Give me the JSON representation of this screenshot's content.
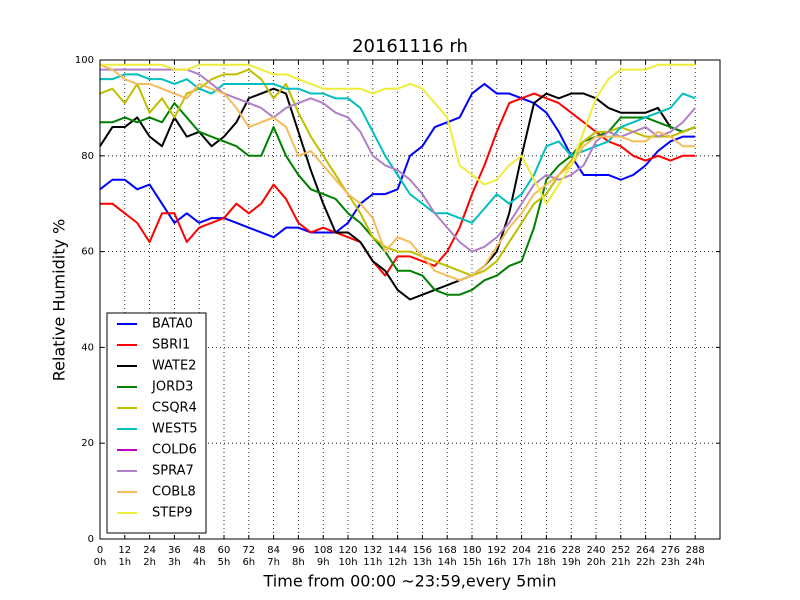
{
  "chart_data": {
    "type": "line",
    "title": "20161116 rh",
    "xlabel": "Time from 00:00 ~23:59,every 5min",
    "ylabel": "Relative Humidity %",
    "x": [
      0,
      6,
      12,
      18,
      24,
      30,
      36,
      42,
      48,
      54,
      60,
      66,
      72,
      78,
      84,
      90,
      96,
      102,
      108,
      114,
      120,
      126,
      132,
      138,
      144,
      150,
      156,
      162,
      168,
      174,
      180,
      186,
      192,
      198,
      204,
      210,
      216,
      222,
      228,
      234,
      240,
      246,
      252,
      258,
      264,
      270,
      276,
      282,
      288
    ],
    "xlim": [
      0,
      300
    ],
    "ylim": [
      0,
      100
    ],
    "xticks": [
      0,
      12,
      24,
      36,
      48,
      60,
      72,
      84,
      96,
      108,
      120,
      132,
      144,
      156,
      168,
      180,
      192,
      204,
      216,
      228,
      240,
      252,
      264,
      276,
      288
    ],
    "xtick_hours": [
      "0h",
      "1h",
      "2h",
      "3h",
      "4h",
      "5h",
      "6h",
      "7h",
      "8h",
      "9h",
      "10h",
      "11h",
      "12h",
      "13h",
      "14h",
      "15h",
      "16h",
      "17h",
      "18h",
      "19h",
      "20h",
      "21h",
      "22h",
      "23h",
      "24h"
    ],
    "yticks": [
      0,
      20,
      40,
      60,
      80,
      100
    ],
    "grid": true,
    "legend": "lower left",
    "series": [
      {
        "name": "BATA0",
        "color": "#0000ff",
        "values": [
          73,
          75,
          75,
          73,
          74,
          70,
          66,
          68,
          66,
          67,
          67,
          66,
          65,
          64,
          63,
          65,
          65,
          64,
          64,
          64,
          66,
          70,
          72,
          72,
          73,
          80,
          82,
          86,
          87,
          88,
          93,
          95,
          93,
          93,
          92,
          91,
          89,
          85,
          80,
          76,
          76,
          76,
          75,
          76,
          78,
          81,
          83,
          84,
          84
        ]
      },
      {
        "name": "SBRI1",
        "color": "#ff0000",
        "values": [
          70,
          70,
          68,
          66,
          62,
          68,
          68,
          62,
          65,
          66,
          67,
          70,
          68,
          70,
          74,
          71,
          66,
          64,
          65,
          64,
          63,
          62,
          58,
          55,
          59,
          59,
          58,
          57,
          60,
          65,
          72,
          78,
          85,
          91,
          92,
          93,
          92,
          91,
          89,
          87,
          85,
          83,
          82,
          80,
          79,
          80,
          79,
          80,
          80
        ]
      },
      {
        "name": "WATE2",
        "color": "#000000",
        "values": [
          82,
          86,
          86,
          88,
          84,
          82,
          88,
          84,
          85,
          82,
          84,
          87,
          92,
          93,
          94,
          93,
          85,
          77,
          70,
          64,
          64,
          62,
          58,
          56,
          52,
          50,
          51,
          52,
          53,
          54,
          55,
          57,
          60,
          68,
          80,
          91,
          93,
          92,
          93,
          93,
          92,
          90,
          89,
          89,
          89,
          90,
          86,
          85,
          86
        ]
      },
      {
        "name": "JORD3",
        "color": "#008000",
        "values": [
          87,
          87,
          88,
          87,
          88,
          87,
          91,
          88,
          85,
          84,
          83,
          82,
          80,
          80,
          86,
          80,
          76,
          73,
          72,
          71,
          68,
          66,
          63,
          60,
          56,
          56,
          55,
          52,
          51,
          51,
          52,
          54,
          55,
          57,
          58,
          65,
          75,
          78,
          80,
          83,
          84,
          85,
          88,
          88,
          88,
          87,
          86,
          85,
          86
        ]
      },
      {
        "name": "CSQR4",
        "color": "#bfbf00",
        "values": [
          93,
          94,
          91,
          95,
          89,
          92,
          88,
          93,
          94,
          96,
          97,
          97,
          98,
          96,
          92,
          95,
          89,
          84,
          80,
          76,
          72,
          68,
          63,
          61,
          60,
          60,
          59,
          58,
          57,
          56,
          55,
          56,
          58,
          62,
          66,
          70,
          72,
          76,
          79,
          83,
          85,
          85,
          86,
          85,
          84,
          84,
          84,
          85,
          86
        ]
      },
      {
        "name": "WEST5",
        "color": "#00bfbf",
        "values": [
          96,
          96,
          97,
          97,
          96,
          96,
          95,
          96,
          94,
          93,
          95,
          95,
          95,
          95,
          95,
          94,
          94,
          93,
          93,
          92,
          92,
          90,
          85,
          80,
          76,
          72,
          70,
          68,
          68,
          67,
          66,
          69,
          72,
          70,
          72,
          76,
          82,
          83,
          80,
          81,
          82,
          83,
          86,
          87,
          88,
          89,
          90,
          93,
          92
        ]
      },
      {
        "name": "COLD6",
        "color": "#bf00bf",
        "values": [
          null,
          null,
          null,
          null,
          null,
          null,
          null,
          null,
          null,
          null,
          null,
          null,
          null,
          null,
          null,
          null,
          null,
          null,
          null,
          null,
          null,
          null,
          null,
          null,
          null,
          null,
          null,
          null,
          null,
          null,
          null,
          null,
          null,
          null,
          null,
          null,
          null,
          null,
          null,
          null,
          null,
          null,
          null,
          null,
          null,
          null,
          null,
          null,
          null
        ]
      },
      {
        "name": "SPRA7",
        "color": "#b07fc7",
        "values": [
          98,
          98,
          98,
          98,
          98,
          98,
          98,
          98,
          97,
          95,
          93,
          92,
          91,
          90,
          88,
          90,
          91,
          92,
          91,
          89,
          88,
          85,
          80,
          78,
          77,
          75,
          72,
          68,
          65,
          62,
          60,
          61,
          63,
          66,
          70,
          74,
          76,
          75,
          76,
          78,
          83,
          85,
          84,
          85,
          86,
          84,
          85,
          87,
          90
        ]
      },
      {
        "name": "COBL8",
        "color": "#f5bc5c",
        "values": [
          99,
          98,
          96,
          95,
          95,
          94,
          93,
          92,
          95,
          94,
          93,
          90,
          86,
          87,
          88,
          86,
          80,
          81,
          78,
          75,
          72,
          70,
          67,
          60,
          63,
          62,
          59,
          56,
          55,
          54,
          55,
          57,
          61,
          65,
          68,
          72,
          74,
          76,
          78,
          82,
          84,
          84,
          84,
          83,
          83,
          85,
          84,
          82,
          82
        ]
      },
      {
        "name": "STEP9",
        "color": "#eeee3a",
        "values": [
          99,
          99,
          99,
          99,
          99,
          99,
          98,
          98,
          99,
          99,
          99,
          99,
          99,
          98,
          97,
          97,
          96,
          95,
          94,
          94,
          94,
          94,
          93,
          94,
          94,
          95,
          94,
          91,
          88,
          78,
          76,
          74,
          75,
          78,
          80,
          75,
          70,
          74,
          78,
          85,
          92,
          96,
          98,
          98,
          98,
          99,
          99,
          99,
          99
        ]
      }
    ]
  }
}
